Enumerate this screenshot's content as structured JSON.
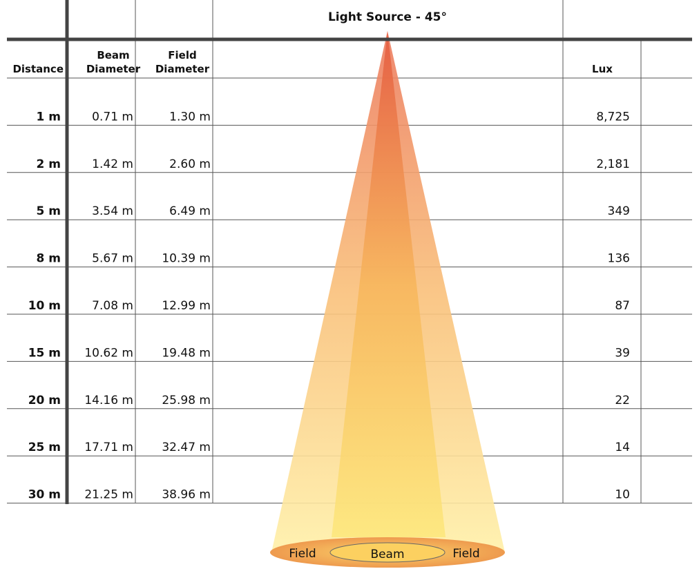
{
  "header": {
    "title": "Light Source - 45°"
  },
  "columns": {
    "distance": [
      "Distance"
    ],
    "beam": [
      "Beam",
      "Diameter"
    ],
    "field": [
      "Field",
      "Diameter"
    ],
    "lux": [
      "Lux"
    ]
  },
  "table": {
    "rows": [
      [
        "1 m",
        "0.71 m",
        "1.30 m",
        "8,725"
      ],
      [
        "2 m",
        "1.42 m",
        "2.60 m",
        "2,181"
      ],
      [
        "5 m",
        "3.54 m",
        "6.49 m",
        "349"
      ],
      [
        "8 m",
        "5.67 m",
        "10.39 m",
        "136"
      ],
      [
        "10 m",
        "7.08 m",
        "12.99 m",
        "87"
      ],
      [
        "15 m",
        "10.62 m",
        "19.48 m",
        "39"
      ],
      [
        "20 m",
        "14.16 m",
        "25.98 m",
        "22"
      ],
      [
        "25 m",
        "17.71 m",
        "32.47 m",
        "14"
      ],
      [
        "30 m",
        "21.25 m",
        "38.96 m",
        "10"
      ]
    ]
  },
  "cone": {
    "labels": [
      "Field",
      "Beam",
      "Field"
    ]
  }
}
